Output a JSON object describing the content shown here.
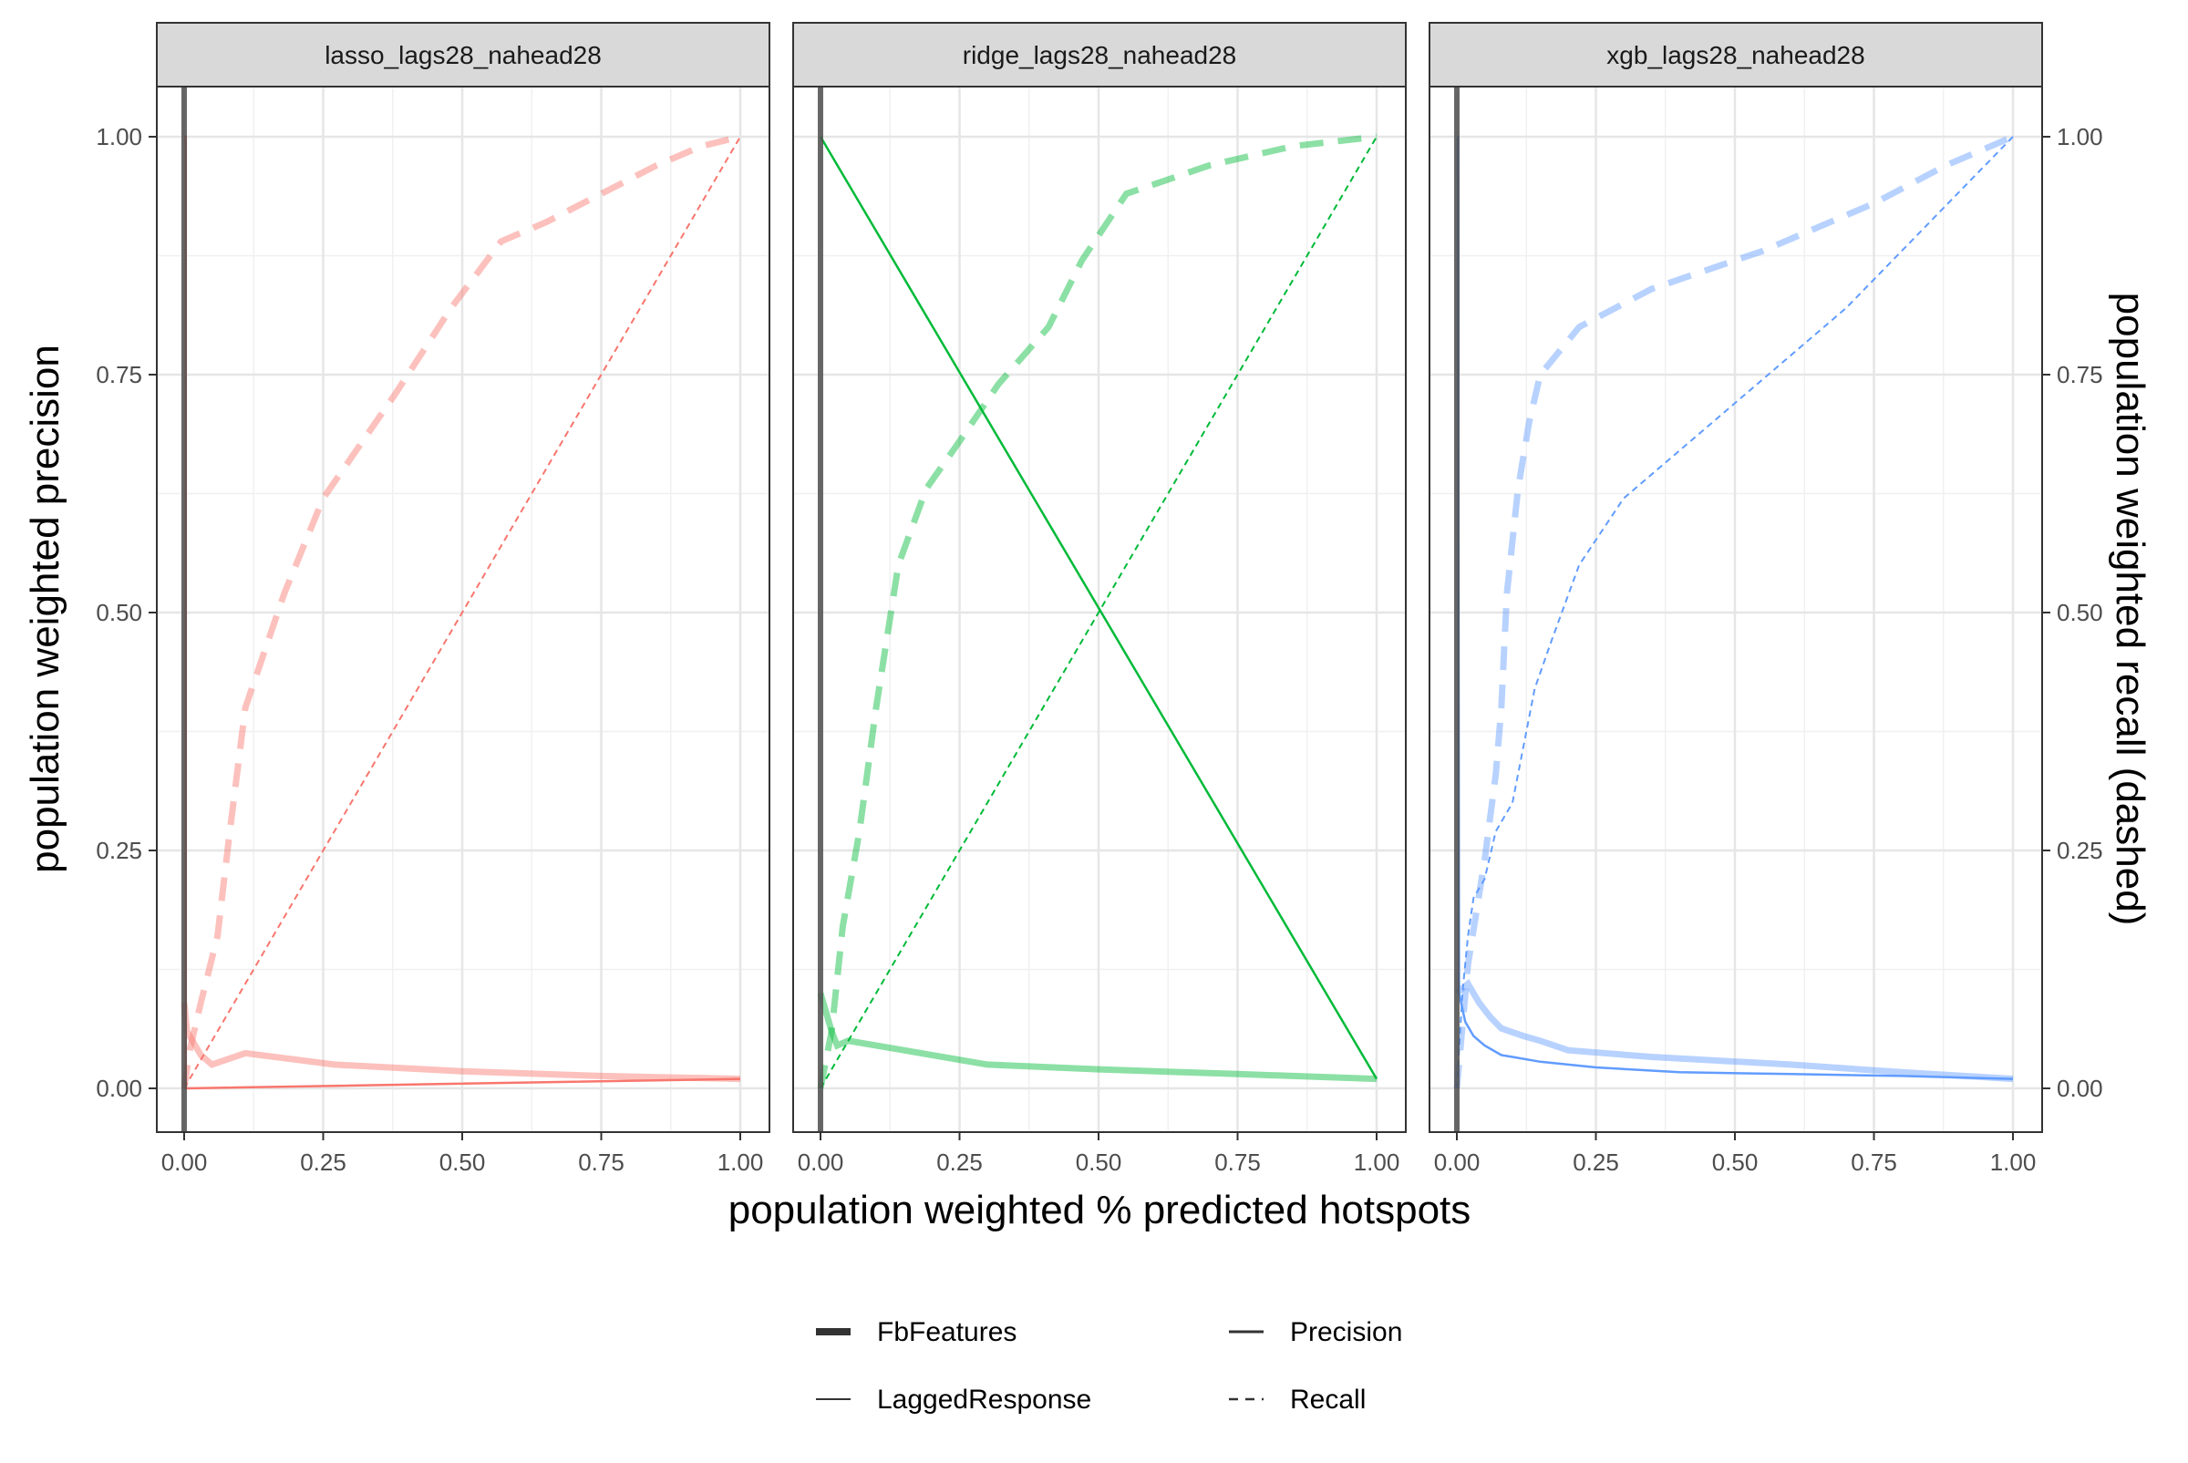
{
  "chart_data": {
    "type": "line",
    "xlabel": "population weighted % predicted hotspots",
    "ylabel": "population weighted precision",
    "ylabel_right": "population weighted recall (dashed)",
    "xlim": [
      0,
      1
    ],
    "ylim": [
      0,
      1
    ],
    "x_ticks": [
      "0.00",
      "0.25",
      "0.50",
      "0.75",
      "1.00"
    ],
    "y_ticks": [
      "0.00",
      "0.25",
      "0.50",
      "0.75",
      "1.00"
    ],
    "grid": true,
    "legend_position": "bottom",
    "legend": [
      {
        "label": "FbFeatures",
        "style": "thick solid"
      },
      {
        "label": "Precision",
        "style": "solid"
      },
      {
        "label": "LaggedResponse",
        "style": "thin solid"
      },
      {
        "label": "Recall",
        "style": "dashed"
      }
    ],
    "panels": [
      {
        "title": "lasso_lags28_nahead28",
        "color": "#F8766D",
        "fb_precision": [
          [
            0.0,
            0.09
          ],
          [
            0.005,
            0.06
          ],
          [
            0.03,
            0.035
          ],
          [
            0.05,
            0.025
          ],
          [
            0.11,
            0.037
          ],
          [
            0.27,
            0.025
          ],
          [
            0.5,
            0.018
          ],
          [
            0.75,
            0.013
          ],
          [
            1.0,
            0.01
          ]
        ],
        "fb_recall": [
          [
            0.0,
            0.0
          ],
          [
            0.01,
            0.04
          ],
          [
            0.03,
            0.09
          ],
          [
            0.06,
            0.16
          ],
          [
            0.08,
            0.26
          ],
          [
            0.11,
            0.4
          ],
          [
            0.18,
            0.52
          ],
          [
            0.25,
            0.62
          ],
          [
            0.38,
            0.73
          ],
          [
            0.48,
            0.82
          ],
          [
            0.57,
            0.89
          ],
          [
            0.65,
            0.91
          ],
          [
            0.75,
            0.94
          ],
          [
            0.85,
            0.97
          ],
          [
            0.93,
            0.99
          ],
          [
            1.0,
            1.0
          ]
        ],
        "lag_precision": [
          [
            0.0,
            1.0
          ],
          [
            0.003,
            1.0
          ],
          [
            0.003,
            0.0
          ],
          [
            1.0,
            0.01
          ]
        ],
        "lag_recall": [
          [
            0.0,
            0.0
          ],
          [
            1.0,
            1.0
          ]
        ]
      },
      {
        "title": "ridge_lags28_nahead28",
        "color": "#00BA38",
        "fb_precision": [
          [
            0.0,
            0.1
          ],
          [
            0.02,
            0.06
          ],
          [
            0.03,
            0.045
          ],
          [
            0.05,
            0.05
          ],
          [
            0.15,
            0.04
          ],
          [
            0.3,
            0.025
          ],
          [
            0.5,
            0.02
          ],
          [
            0.75,
            0.015
          ],
          [
            1.0,
            0.01
          ]
        ],
        "fb_recall": [
          [
            0.0,
            0.0
          ],
          [
            0.02,
            0.06
          ],
          [
            0.04,
            0.17
          ],
          [
            0.07,
            0.27
          ],
          [
            0.1,
            0.4
          ],
          [
            0.14,
            0.55
          ],
          [
            0.19,
            0.63
          ],
          [
            0.25,
            0.68
          ],
          [
            0.32,
            0.74
          ],
          [
            0.41,
            0.8
          ],
          [
            0.47,
            0.87
          ],
          [
            0.55,
            0.94
          ],
          [
            0.7,
            0.97
          ],
          [
            0.85,
            0.99
          ],
          [
            1.0,
            1.0
          ]
        ],
        "lag_precision": [
          [
            0.0,
            1.0
          ],
          [
            1.0,
            0.01
          ]
        ],
        "lag_recall": [
          [
            0.0,
            0.0
          ],
          [
            1.0,
            1.0
          ]
        ]
      },
      {
        "title": "xgb_lags28_nahead28",
        "color": "#619CFF",
        "fb_precision": [
          [
            0.0,
            0.1
          ],
          [
            0.02,
            0.11
          ],
          [
            0.04,
            0.09
          ],
          [
            0.06,
            0.075
          ],
          [
            0.08,
            0.063
          ],
          [
            0.12,
            0.055
          ],
          [
            0.15,
            0.05
          ],
          [
            0.2,
            0.04
          ],
          [
            0.35,
            0.033
          ],
          [
            0.6,
            0.025
          ],
          [
            0.8,
            0.017
          ],
          [
            1.0,
            0.01
          ]
        ],
        "fb_recall": [
          [
            0.0,
            0.0
          ],
          [
            0.02,
            0.13
          ],
          [
            0.05,
            0.24
          ],
          [
            0.07,
            0.33
          ],
          [
            0.08,
            0.4
          ],
          [
            0.09,
            0.52
          ],
          [
            0.11,
            0.63
          ],
          [
            0.13,
            0.7
          ],
          [
            0.15,
            0.75
          ],
          [
            0.22,
            0.8
          ],
          [
            0.35,
            0.84
          ],
          [
            0.55,
            0.88
          ],
          [
            0.75,
            0.93
          ],
          [
            0.88,
            0.97
          ],
          [
            1.0,
            1.0
          ]
        ],
        "lag_precision": [
          [
            0.0,
            1.0
          ],
          [
            0.002,
            1.0
          ],
          [
            0.004,
            0.1
          ],
          [
            0.015,
            0.07
          ],
          [
            0.03,
            0.055
          ],
          [
            0.05,
            0.045
          ],
          [
            0.08,
            0.035
          ],
          [
            0.1,
            0.033
          ],
          [
            0.15,
            0.028
          ],
          [
            0.25,
            0.022
          ],
          [
            0.4,
            0.017
          ],
          [
            0.6,
            0.015
          ],
          [
            0.8,
            0.013
          ],
          [
            1.0,
            0.01
          ]
        ],
        "lag_recall": [
          [
            0.0,
            0.0
          ],
          [
            0.01,
            0.1
          ],
          [
            0.02,
            0.16
          ],
          [
            0.03,
            0.2
          ],
          [
            0.05,
            0.22
          ],
          [
            0.07,
            0.27
          ],
          [
            0.1,
            0.3
          ],
          [
            0.12,
            0.36
          ],
          [
            0.14,
            0.42
          ],
          [
            0.17,
            0.47
          ],
          [
            0.22,
            0.55
          ],
          [
            0.3,
            0.62
          ],
          [
            0.4,
            0.67
          ],
          [
            0.5,
            0.72
          ],
          [
            0.6,
            0.77
          ],
          [
            0.7,
            0.82
          ],
          [
            0.8,
            0.88
          ],
          [
            0.9,
            0.94
          ],
          [
            1.0,
            1.0
          ]
        ]
      }
    ]
  }
}
